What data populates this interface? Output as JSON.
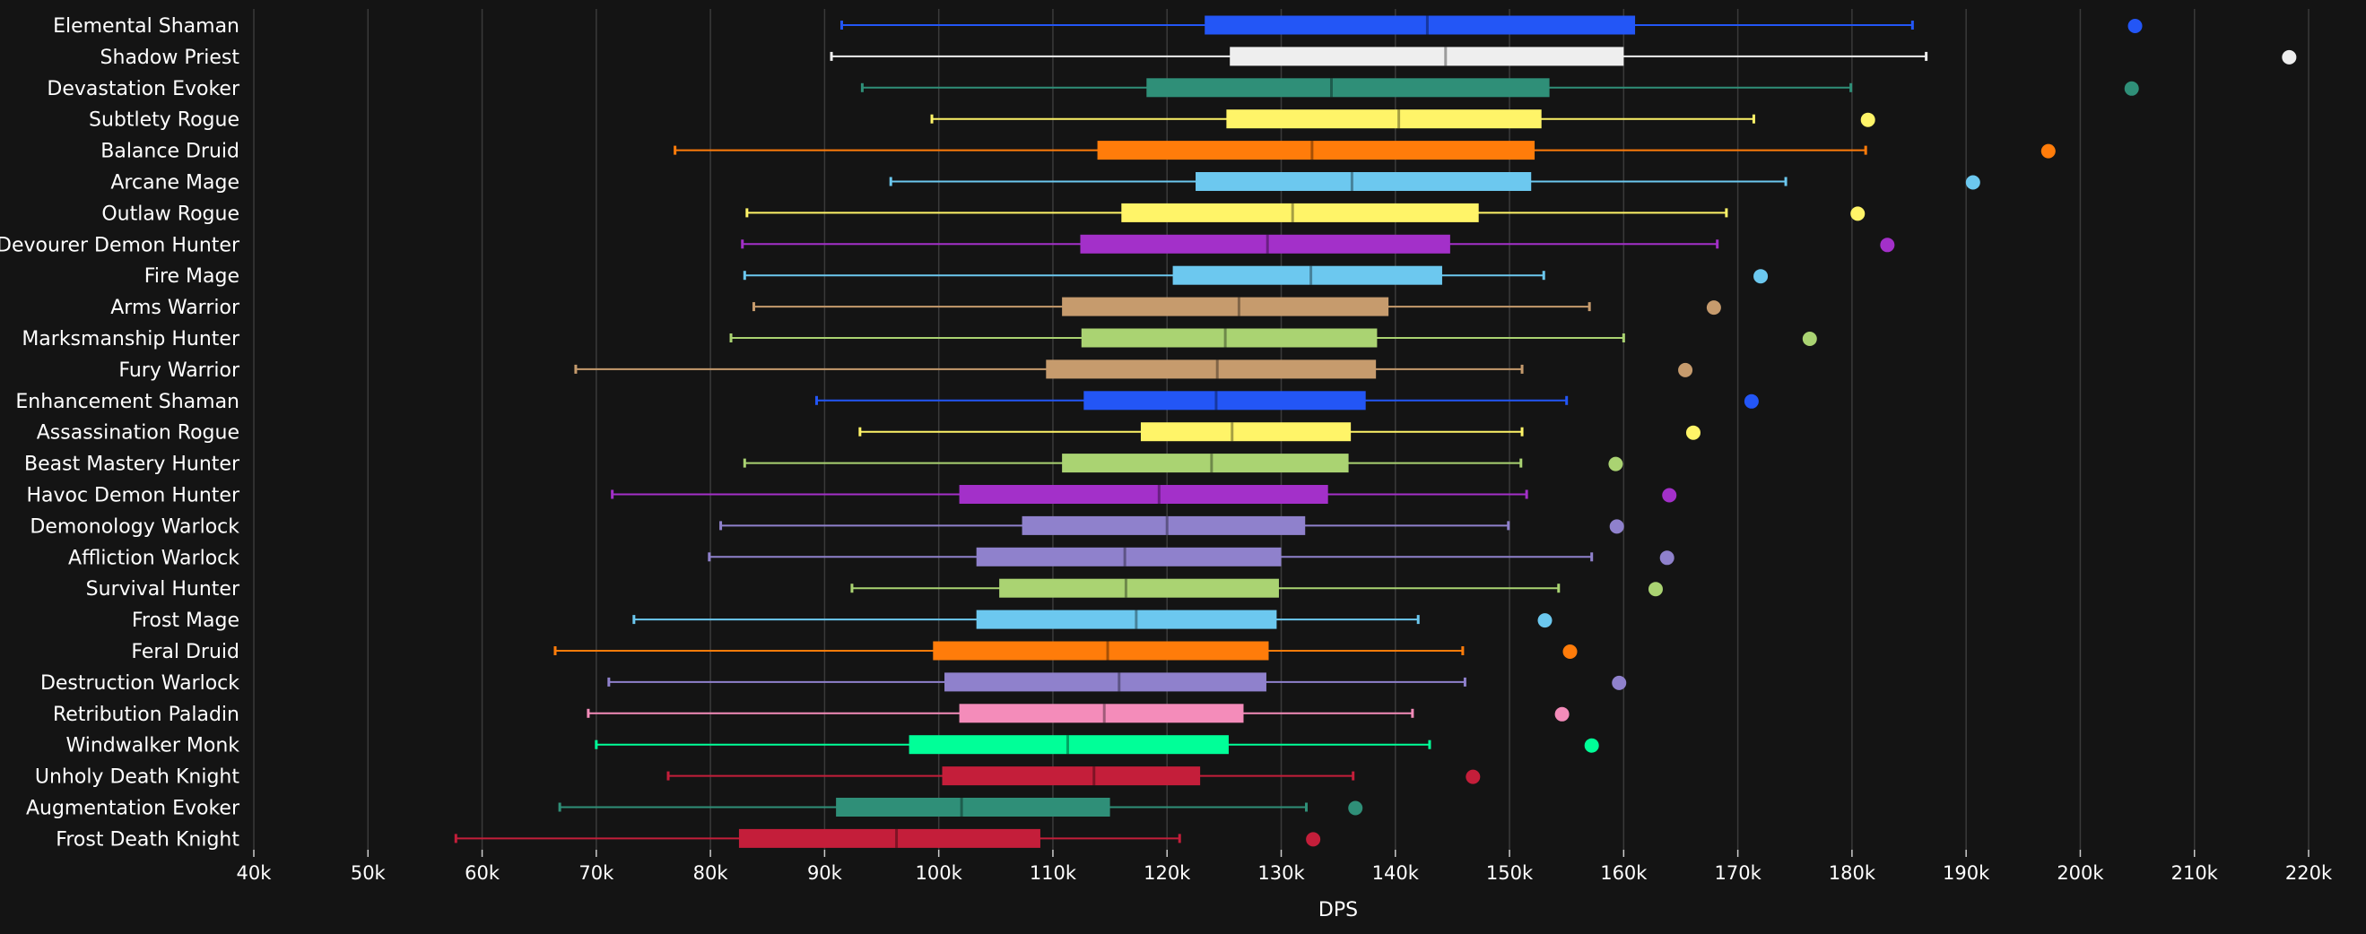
{
  "chart_data": {
    "type": "boxplot",
    "xlabel": "DPS",
    "xlim": [
      40000,
      220000
    ],
    "x_ticks": [
      {
        "value": 40000,
        "label": "40k"
      },
      {
        "value": 50000,
        "label": "50k"
      },
      {
        "value": 60000,
        "label": "60k"
      },
      {
        "value": 70000,
        "label": "70k"
      },
      {
        "value": 80000,
        "label": "80k"
      },
      {
        "value": 90000,
        "label": "90k"
      },
      {
        "value": 100000,
        "label": "100k"
      },
      {
        "value": 110000,
        "label": "110k"
      },
      {
        "value": 120000,
        "label": "120k"
      },
      {
        "value": 130000,
        "label": "130k"
      },
      {
        "value": 140000,
        "label": "140k"
      },
      {
        "value": 150000,
        "label": "150k"
      },
      {
        "value": 160000,
        "label": "160k"
      },
      {
        "value": 170000,
        "label": "170k"
      },
      {
        "value": 180000,
        "label": "180k"
      },
      {
        "value": 190000,
        "label": "190k"
      },
      {
        "value": 200000,
        "label": "200k"
      },
      {
        "value": 210000,
        "label": "210k"
      },
      {
        "value": 220000,
        "label": "220k"
      }
    ],
    "grid": "vertical",
    "series": [
      {
        "name": "Elemental Shaman",
        "color": "#2356f6",
        "min": 91500,
        "q1": 123300,
        "median": 142800,
        "q3": 161000,
        "max": 185300,
        "outlier": 204800
      },
      {
        "name": "Shadow Priest",
        "color": "#eeeeee",
        "min": 90600,
        "q1": 125500,
        "median": 144400,
        "q3": 160000,
        "max": 186500,
        "outlier": 218300
      },
      {
        "name": "Devastation Evoker",
        "color": "#2f8f78",
        "min": 93300,
        "q1": 118200,
        "median": 134400,
        "q3": 153500,
        "max": 179900,
        "outlier": 204500
      },
      {
        "name": "Subtlety Rogue",
        "color": "#fff468",
        "min": 99400,
        "q1": 125200,
        "median": 140300,
        "q3": 152800,
        "max": 171400,
        "outlier": 181400
      },
      {
        "name": "Balance Druid",
        "color": "#ff7c0a",
        "min": 76900,
        "q1": 113900,
        "median": 132700,
        "q3": 152200,
        "max": 181200,
        "outlier": 197200
      },
      {
        "name": "Arcane Mage",
        "color": "#6cc8ef",
        "min": 95800,
        "q1": 122500,
        "median": 136200,
        "q3": 151900,
        "max": 174200,
        "outlier": 190600
      },
      {
        "name": "Outlaw Rogue",
        "color": "#fff468",
        "min": 83200,
        "q1": 116000,
        "median": 131000,
        "q3": 147300,
        "max": 169000,
        "outlier": 180500
      },
      {
        "name": "Devourer Demon Hunter",
        "color": "#a330c9",
        "min": 82800,
        "q1": 112400,
        "median": 128800,
        "q3": 144800,
        "max": 168200,
        "outlier": 183100
      },
      {
        "name": "Fire Mage",
        "color": "#6cc8ef",
        "min": 83000,
        "q1": 120500,
        "median": 132600,
        "q3": 144100,
        "max": 153000,
        "outlier": 172000
      },
      {
        "name": "Arms Warrior",
        "color": "#c69b6d",
        "min": 83800,
        "q1": 110800,
        "median": 126300,
        "q3": 139400,
        "max": 157000,
        "outlier": 167900
      },
      {
        "name": "Marksmanship Hunter",
        "color": "#aad372",
        "min": 81800,
        "q1": 112500,
        "median": 125100,
        "q3": 138400,
        "max": 160000,
        "outlier": 176300
      },
      {
        "name": "Fury Warrior",
        "color": "#c69b6d",
        "min": 68200,
        "q1": 109400,
        "median": 124400,
        "q3": 138300,
        "max": 151100,
        "outlier": 165400
      },
      {
        "name": "Enhancement Shaman",
        "color": "#2356f6",
        "min": 89300,
        "q1": 112700,
        "median": 124300,
        "q3": 137400,
        "max": 155000,
        "outlier": 171200
      },
      {
        "name": "Assassination Rogue",
        "color": "#fff468",
        "min": 93100,
        "q1": 117700,
        "median": 125700,
        "q3": 136100,
        "max": 151100,
        "outlier": 166100
      },
      {
        "name": "Beast Mastery Hunter",
        "color": "#aad372",
        "min": 83000,
        "q1": 110800,
        "median": 123900,
        "q3": 135900,
        "max": 151000,
        "outlier": 159300
      },
      {
        "name": "Havoc Demon Hunter",
        "color": "#a330c9",
        "min": 71400,
        "q1": 101800,
        "median": 119300,
        "q3": 134100,
        "max": 151500,
        "outlier": 164000
      },
      {
        "name": "Demonology Warlock",
        "color": "#8f81cc",
        "min": 80900,
        "q1": 107300,
        "median": 120000,
        "q3": 132100,
        "max": 149900,
        "outlier": 159400
      },
      {
        "name": "Affliction Warlock",
        "color": "#8f81cc",
        "min": 79900,
        "q1": 103300,
        "median": 116300,
        "q3": 130000,
        "max": 157200,
        "outlier": 163800
      },
      {
        "name": "Survival Hunter",
        "color": "#aad372",
        "min": 92400,
        "q1": 105300,
        "median": 116400,
        "q3": 129800,
        "max": 154300,
        "outlier": 162800
      },
      {
        "name": "Frost Mage",
        "color": "#6cc8ef",
        "min": 73300,
        "q1": 103300,
        "median": 117300,
        "q3": 129600,
        "max": 142000,
        "outlier": 153100
      },
      {
        "name": "Feral Druid",
        "color": "#ff7c0a",
        "min": 66400,
        "q1": 99500,
        "median": 114800,
        "q3": 128900,
        "max": 145900,
        "outlier": 155300
      },
      {
        "name": "Destruction Warlock",
        "color": "#8f81cc",
        "min": 71100,
        "q1": 100500,
        "median": 115800,
        "q3": 128700,
        "max": 146100,
        "outlier": 159600
      },
      {
        "name": "Retribution Paladin",
        "color": "#f48cba",
        "min": 69300,
        "q1": 101800,
        "median": 114500,
        "q3": 126700,
        "max": 141500,
        "outlier": 154600
      },
      {
        "name": "Windwalker Monk",
        "color": "#00ff98",
        "min": 70000,
        "q1": 97400,
        "median": 111300,
        "q3": 125400,
        "max": 143000,
        "outlier": 157200
      },
      {
        "name": "Unholy Death Knight",
        "color": "#c41e3a",
        "min": 76300,
        "q1": 100300,
        "median": 113600,
        "q3": 122900,
        "max": 136300,
        "outlier": 146800
      },
      {
        "name": "Augmentation Evoker",
        "color": "#2f8f78",
        "min": 66800,
        "q1": 91000,
        "median": 102000,
        "q3": 115000,
        "max": 132200,
        "outlier": 136500
      },
      {
        "name": "Frost Death Knight",
        "color": "#c41e3a",
        "min": 57700,
        "q1": 82500,
        "median": 96300,
        "q3": 108900,
        "max": 121100,
        "outlier": 132800
      }
    ]
  }
}
